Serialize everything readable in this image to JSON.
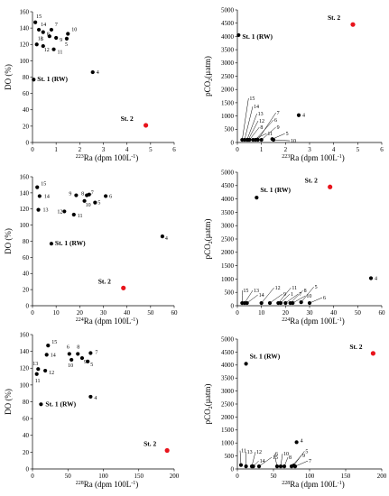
{
  "colors": {
    "black_point": "#000000",
    "station2_point": "#e8141c"
  },
  "chart_data": [
    {
      "type": "scatter",
      "xlabel_main": "223",
      "xlabel_rest": "Ra (dpm 100L",
      "ylabel": "DO (%)",
      "xlim": [
        0,
        6
      ],
      "ylim": [
        0,
        160
      ],
      "xticks": [
        0,
        1,
        2,
        3,
        4,
        5,
        6
      ],
      "yticks": [
        0,
        20,
        40,
        60,
        80,
        100,
        120,
        140,
        160
      ],
      "points": [
        {
          "label": "St. 1 (RW)",
          "x": 0.05,
          "y": 77,
          "highlight": false
        },
        {
          "label": "St. 2",
          "x": 4.8,
          "y": 21,
          "highlight": true
        },
        {
          "label": "4",
          "x": 2.55,
          "y": 86,
          "highlight": false
        },
        {
          "label": "15",
          "x": 0.12,
          "y": 147,
          "highlight": false
        },
        {
          "label": "14",
          "x": 0.27,
          "y": 138,
          "highlight": false
        },
        {
          "label": "7",
          "x": 0.8,
          "y": 138,
          "highlight": false
        },
        {
          "label": "8",
          "x": 0.45,
          "y": 135,
          "highlight": false
        },
        {
          "label": "10",
          "x": 1.5,
          "y": 133,
          "highlight": false
        },
        {
          "label": "6",
          "x": 0.72,
          "y": 130,
          "highlight": false
        },
        {
          "label": "9",
          "x": 1.0,
          "y": 128,
          "highlight": false
        },
        {
          "label": "5",
          "x": 1.45,
          "y": 127,
          "highlight": false
        },
        {
          "label": "13",
          "x": 0.18,
          "y": 120,
          "highlight": false
        },
        {
          "label": "12",
          "x": 0.45,
          "y": 118,
          "highlight": false
        },
        {
          "label": "11",
          "x": 0.9,
          "y": 114,
          "highlight": false
        }
      ]
    },
    {
      "type": "scatter",
      "xlabel_main": "223",
      "xlabel_rest": "Ra (dpm 100L",
      "ylabel": "pCO",
      "ylabel_sub": "2",
      "ylabel_unit": "(µatm)",
      "xlim": [
        0,
        6
      ],
      "ylim": [
        0,
        5000
      ],
      "xticks": [
        0,
        1,
        2,
        3,
        4,
        5,
        6
      ],
      "yticks": [
        0,
        500,
        1000,
        1500,
        2000,
        2500,
        3000,
        3500,
        4000,
        4500,
        5000
      ],
      "points": [
        {
          "label": "St. 1 (RW)",
          "x": 0.05,
          "y": 4050,
          "highlight": false
        },
        {
          "label": "St. 2",
          "x": 4.8,
          "y": 4450,
          "highlight": true
        },
        {
          "label": "4",
          "x": 2.55,
          "y": 1030,
          "highlight": false
        },
        {
          "label": "15",
          "x": 0.2,
          "y": 100,
          "highlight": false
        },
        {
          "label": "14",
          "x": 0.3,
          "y": 100,
          "highlight": false
        },
        {
          "label": "13",
          "x": 0.4,
          "y": 100,
          "highlight": false
        },
        {
          "label": "12",
          "x": 0.45,
          "y": 100,
          "highlight": false
        },
        {
          "label": "8",
          "x": 0.5,
          "y": 100,
          "highlight": false
        },
        {
          "label": "11",
          "x": 0.65,
          "y": 100,
          "highlight": false
        },
        {
          "label": "6",
          "x": 0.75,
          "y": 100,
          "highlight": false
        },
        {
          "label": "7",
          "x": 0.85,
          "y": 100,
          "highlight": false
        },
        {
          "label": "9",
          "x": 1.0,
          "y": 100,
          "highlight": false
        },
        {
          "label": "5",
          "x": 1.45,
          "y": 130,
          "highlight": false
        },
        {
          "label": "10",
          "x": 1.5,
          "y": 100,
          "highlight": false
        }
      ]
    },
    {
      "type": "scatter",
      "xlabel_main": "224",
      "xlabel_rest": "Ra (dpm 100L",
      "ylabel": "DO (%)",
      "xlim": [
        0,
        60
      ],
      "ylim": [
        0,
        160
      ],
      "xticks": [
        0,
        10,
        20,
        30,
        40,
        50,
        60
      ],
      "yticks": [
        0,
        20,
        40,
        60,
        80,
        100,
        120,
        140,
        160
      ],
      "points": [
        {
          "label": "St. 1 (RW)",
          "x": 8,
          "y": 77,
          "highlight": false
        },
        {
          "label": "St. 2",
          "x": 38.5,
          "y": 22,
          "highlight": true
        },
        {
          "label": "4",
          "x": 55,
          "y": 86,
          "highlight": false
        },
        {
          "label": "15",
          "x": 2,
          "y": 147,
          "highlight": false
        },
        {
          "label": "14",
          "x": 3,
          "y": 136,
          "highlight": false
        },
        {
          "label": "13",
          "x": 2.5,
          "y": 119,
          "highlight": false
        },
        {
          "label": "12",
          "x": 13.5,
          "y": 117,
          "highlight": false
        },
        {
          "label": "11",
          "x": 17.5,
          "y": 113,
          "highlight": false
        },
        {
          "label": "9",
          "x": 18.5,
          "y": 137,
          "highlight": false
        },
        {
          "label": "8",
          "x": 23,
          "y": 137,
          "highlight": false
        },
        {
          "label": "7",
          "x": 24,
          "y": 138,
          "highlight": false
        },
        {
          "label": "10",
          "x": 22,
          "y": 130,
          "highlight": false
        },
        {
          "label": "5",
          "x": 26.5,
          "y": 128,
          "highlight": false
        },
        {
          "label": "6",
          "x": 31,
          "y": 136,
          "highlight": false
        }
      ]
    },
    {
      "type": "scatter",
      "xlabel_main": "224",
      "xlabel_rest": "Ra (dpm 100L",
      "ylabel": "pCO",
      "ylabel_sub": "2",
      "ylabel_unit": "(µatm)",
      "xlim": [
        0,
        60
      ],
      "ylim": [
        0,
        5000
      ],
      "xticks": [
        0,
        10,
        20,
        30,
        40,
        50,
        60
      ],
      "yticks": [
        0,
        500,
        1000,
        1500,
        2000,
        2500,
        3000,
        3500,
        4000,
        4500,
        5000
      ],
      "points": [
        {
          "label": "St. 1 (RW)",
          "x": 8,
          "y": 4050,
          "highlight": false
        },
        {
          "label": "St. 2",
          "x": 38.5,
          "y": 4450,
          "highlight": true
        },
        {
          "label": "4",
          "x": 55.5,
          "y": 1030,
          "highlight": false
        },
        {
          "label": "15",
          "x": 2,
          "y": 100,
          "highlight": false
        },
        {
          "label": "13",
          "x": 3,
          "y": 100,
          "highlight": false
        },
        {
          "label": "14",
          "x": 4,
          "y": 100,
          "highlight": false
        },
        {
          "label": "12",
          "x": 10,
          "y": 100,
          "highlight": false
        },
        {
          "label": "9",
          "x": 13.5,
          "y": 100,
          "highlight": false
        },
        {
          "label": "11",
          "x": 17,
          "y": 100,
          "highlight": false
        },
        {
          "label": "1",
          "x": 18,
          "y": 100,
          "highlight": false
        },
        {
          "label": "7",
          "x": 20,
          "y": 100,
          "highlight": false
        },
        {
          "label": "8",
          "x": 22,
          "y": 100,
          "highlight": false
        },
        {
          "label": "10",
          "x": 23,
          "y": 100,
          "highlight": false
        },
        {
          "label": "5",
          "x": 26.5,
          "y": 130,
          "highlight": false
        },
        {
          "label": "6",
          "x": 30,
          "y": 100,
          "highlight": false
        }
      ]
    },
    {
      "type": "scatter",
      "xlabel_main": "228",
      "xlabel_rest": "Ra (dpm 100L",
      "ylabel": "DO (%)",
      "xlim": [
        0,
        200
      ],
      "ylim": [
        0,
        160
      ],
      "xticks": [
        0,
        50,
        100,
        150,
        200
      ],
      "yticks": [
        0,
        20,
        40,
        60,
        80,
        100,
        120,
        140,
        160
      ],
      "points": [
        {
          "label": "St. 1 (RW)",
          "x": 12,
          "y": 77,
          "highlight": false
        },
        {
          "label": "St. 2",
          "x": 190,
          "y": 22,
          "highlight": true
        },
        {
          "label": "4",
          "x": 82,
          "y": 86,
          "highlight": false
        },
        {
          "label": "15",
          "x": 22,
          "y": 147,
          "highlight": false
        },
        {
          "label": "14",
          "x": 20,
          "y": 136,
          "highlight": false
        },
        {
          "label": "13",
          "x": 8,
          "y": 119,
          "highlight": false
        },
        {
          "label": "12",
          "x": 18,
          "y": 117,
          "highlight": false
        },
        {
          "label": "11",
          "x": 6,
          "y": 113,
          "highlight": false
        },
        {
          "label": "6",
          "x": 52,
          "y": 137,
          "highlight": false
        },
        {
          "label": "8",
          "x": 64,
          "y": 137,
          "highlight": false
        },
        {
          "label": "10",
          "x": 55,
          "y": 130,
          "highlight": false
        },
        {
          "label": "9",
          "x": 70,
          "y": 132,
          "highlight": false
        },
        {
          "label": "7",
          "x": 82,
          "y": 138,
          "highlight": false
        },
        {
          "label": "5",
          "x": 78,
          "y": 128,
          "highlight": false
        }
      ]
    },
    {
      "type": "scatter",
      "xlabel_main": "228",
      "xlabel_rest": "Ra (dpm 100L",
      "ylabel": "pCO",
      "ylabel_sub": "2",
      "ylabel_unit": "(µatm)",
      "xlim": [
        0,
        200
      ],
      "ylim": [
        0,
        5000
      ],
      "xticks": [
        0,
        50,
        100,
        150,
        200
      ],
      "yticks": [
        0,
        500,
        1000,
        1500,
        2000,
        2500,
        3000,
        3500,
        4000,
        4500,
        5000
      ],
      "points": [
        {
          "label": "St. 1 (RW)",
          "x": 12,
          "y": 4050,
          "highlight": false
        },
        {
          "label": "St. 2",
          "x": 188,
          "y": 4450,
          "highlight": true
        },
        {
          "label": "4",
          "x": 82,
          "y": 1030,
          "highlight": false
        },
        {
          "label": "11",
          "x": 5,
          "y": 150,
          "highlight": false
        },
        {
          "label": "13",
          "x": 12,
          "y": 100,
          "highlight": false
        },
        {
          "label": "12",
          "x": 20,
          "y": 100,
          "highlight": false
        },
        {
          "label": "14",
          "x": 22,
          "y": 100,
          "highlight": false
        },
        {
          "label": "15",
          "x": 30,
          "y": 100,
          "highlight": false
        },
        {
          "label": "6",
          "x": 55,
          "y": 100,
          "highlight": false
        },
        {
          "label": "10",
          "x": 60,
          "y": 100,
          "highlight": false
        },
        {
          "label": "8",
          "x": 65,
          "y": 100,
          "highlight": false
        },
        {
          "label": "9",
          "x": 75,
          "y": 100,
          "highlight": false
        },
        {
          "label": "5",
          "x": 78,
          "y": 130,
          "highlight": false
        },
        {
          "label": "7",
          "x": 80,
          "y": 100,
          "highlight": false
        }
      ]
    }
  ]
}
